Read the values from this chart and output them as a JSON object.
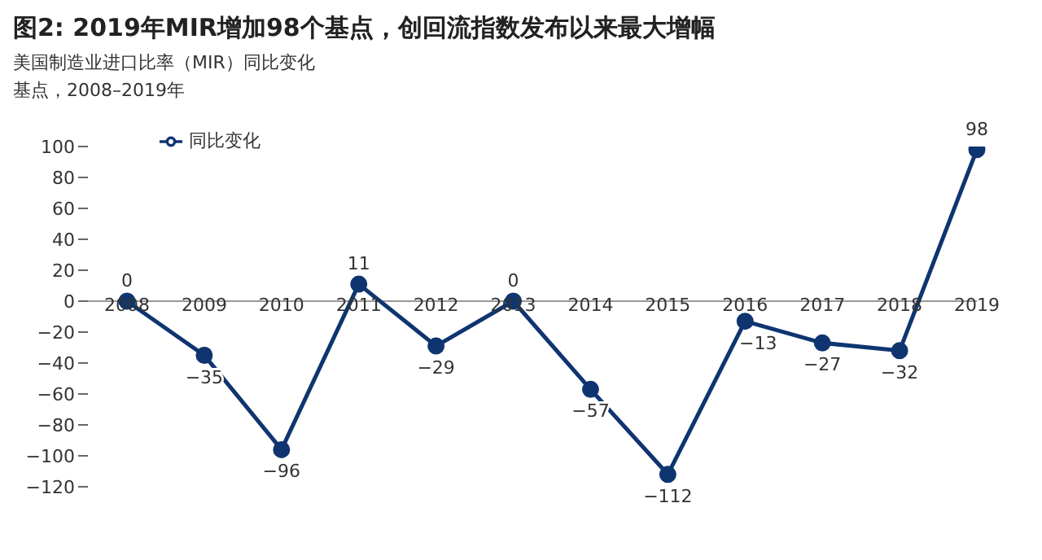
{
  "chart_data": {
    "type": "line",
    "title": "图2: 2019年MIR增加98个基点，创回流指数发布以来最大增幅",
    "subtitle": "美国制造业进口比率（MIR）同比变化",
    "ylabel": "基点，2008–2019年",
    "categories": [
      "2008",
      "2009",
      "2010",
      "2011",
      "2012",
      "2013",
      "2014",
      "2015",
      "2016",
      "2017",
      "2018",
      "2019"
    ],
    "series": [
      {
        "name": "同比变化",
        "color": "#0f3570",
        "values": [
          0,
          -35,
          -96,
          11,
          -29,
          0,
          -57,
          -112,
          -13,
          -27,
          -32,
          98
        ],
        "value_labels": [
          "0",
          "−35",
          "−96",
          "11",
          "−29",
          "0",
          "−57",
          "−112",
          "−13",
          "−27",
          "−32",
          "98"
        ]
      }
    ],
    "ylim": [
      -120,
      100
    ],
    "yticks": [
      {
        "value": 100,
        "label": "100"
      },
      {
        "value": 80,
        "label": "80"
      },
      {
        "value": 60,
        "label": "60"
      },
      {
        "value": 40,
        "label": "40"
      },
      {
        "value": 20,
        "label": "20"
      },
      {
        "value": 0,
        "label": "0"
      },
      {
        "value": -20,
        "label": "−20"
      },
      {
        "value": -40,
        "label": "−40"
      },
      {
        "value": -60,
        "label": "−60"
      },
      {
        "value": -80,
        "label": "−80"
      },
      {
        "value": -100,
        "label": "−100"
      },
      {
        "value": -120,
        "label": "−120"
      }
    ],
    "grid": false,
    "legend": "top left",
    "marker": "circle",
    "line_style": "solid"
  }
}
